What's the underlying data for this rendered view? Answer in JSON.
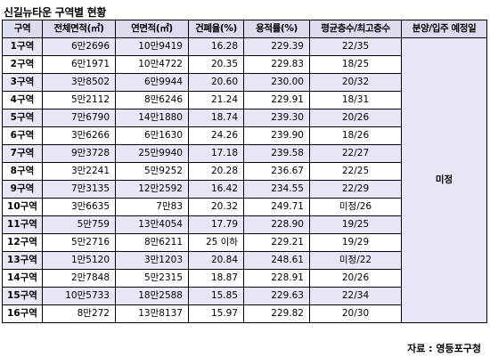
{
  "title": "신길뉴타운 구역별 현황",
  "headers": {
    "zone": "구역",
    "total_area": "전체면적(㎡)",
    "floor_area": "연면적(㎡)",
    "coverage": "건폐율(%)",
    "far": "용적률(%)",
    "floors": "평균층수/최고층수",
    "schedule": "분양/입주 예정일"
  },
  "rows": [
    {
      "zone": "1구역",
      "total_area": "6만2696",
      "floor_area": "10만9419",
      "coverage": "16.28",
      "far": "229.39",
      "floors": "22/35"
    },
    {
      "zone": "2구역",
      "total_area": "6만1971",
      "floor_area": "10만4722",
      "coverage": "20.35",
      "far": "229.83",
      "floors": "18/25"
    },
    {
      "zone": "3구역",
      "total_area": "3만8502",
      "floor_area": "6만9944",
      "coverage": "20.60",
      "far": "230.00",
      "floors": "20/32"
    },
    {
      "zone": "4구역",
      "total_area": "5만2112",
      "floor_area": "8만6246",
      "coverage": "21.24",
      "far": "229.91",
      "floors": "18/31"
    },
    {
      "zone": "5구역",
      "total_area": "7만6790",
      "floor_area": "14만1880",
      "coverage": "18.74",
      "far": "239.30",
      "floors": "20/26"
    },
    {
      "zone": "6구역",
      "total_area": "3만6266",
      "floor_area": "6만1630",
      "coverage": "24.26",
      "far": "239.90",
      "floors": "18/26"
    },
    {
      "zone": "7구역",
      "total_area": "9만3728",
      "floor_area": "25만9940",
      "coverage": "17.18",
      "far": "239.58",
      "floors": "22/27"
    },
    {
      "zone": "8구역",
      "total_area": "3만2241",
      "floor_area": "5만9252",
      "coverage": "20.28",
      "far": "236.67",
      "floors": "22/25"
    },
    {
      "zone": "9구역",
      "total_area": "7만3135",
      "floor_area": "12만2592",
      "coverage": "16.42",
      "far": "234.55",
      "floors": "22/29"
    },
    {
      "zone": "10구역",
      "total_area": "3만6635",
      "floor_area": "7만83",
      "coverage": "20.32",
      "far": "249.71",
      "floors": "미정/26"
    },
    {
      "zone": "11구역",
      "total_area": "5만759",
      "floor_area": "13만4054",
      "coverage": "17.79",
      "far": "228.90",
      "floors": "19/25"
    },
    {
      "zone": "12구역",
      "total_area": "5만2716",
      "floor_area": "8만6211",
      "coverage": "25 이하",
      "far": "229.21",
      "floors": "19/29"
    },
    {
      "zone": "13구역",
      "total_area": "1만5120",
      "floor_area": "3만1203",
      "coverage": "20.84",
      "far": "248.61",
      "floors": "미정/22"
    },
    {
      "zone": "14구역",
      "total_area": "2만7848",
      "floor_area": "5만2315",
      "coverage": "18.87",
      "far": "228.91",
      "floors": "20/26"
    },
    {
      "zone": "15구역",
      "total_area": "10만5733",
      "floor_area": "18만2588",
      "coverage": "15.85",
      "far": "229.63",
      "floors": "22/34"
    },
    {
      "zone": "16구역",
      "total_area": "8만272",
      "floor_area": "13만8137",
      "coverage": "15.97",
      "far": "229.82",
      "floors": "20/30"
    }
  ],
  "schedule_value": "미정",
  "source": "자료 : 영등포구청"
}
